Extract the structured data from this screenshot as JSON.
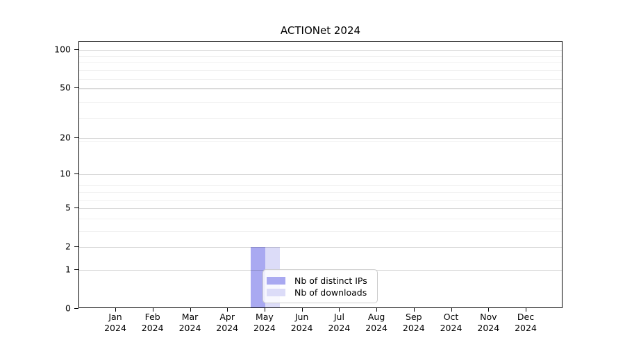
{
  "chart_data": {
    "type": "bar",
    "title": "ACTIONet 2024",
    "categories": [
      "Jan",
      "Feb",
      "Mar",
      "Apr",
      "May",
      "Jun",
      "Jul",
      "Aug",
      "Sep",
      "Oct",
      "Nov",
      "Dec"
    ],
    "x_year": "2024",
    "series": [
      {
        "name": "Nb of distinct IPs",
        "color": "#a9a9f1",
        "values": [
          0,
          0,
          0,
          0,
          2,
          0,
          0,
          0,
          0,
          0,
          0,
          0
        ]
      },
      {
        "name": "Nb of downloads",
        "color": "#dcdcf8",
        "values": [
          0,
          0,
          0,
          0,
          2,
          0,
          0,
          0,
          0,
          0,
          0,
          0
        ]
      }
    ],
    "y_scale": "log1p",
    "ylim": [
      0,
      115.5
    ],
    "y_major_ticks": [
      0,
      1,
      2,
      5,
      10,
      20,
      50,
      100
    ],
    "y_minor_ticks": [
      3,
      4,
      6,
      7,
      8,
      19,
      29,
      39,
      49,
      59,
      69,
      79,
      89
    ],
    "grid": true,
    "legend_position": "lower center inside plot"
  }
}
